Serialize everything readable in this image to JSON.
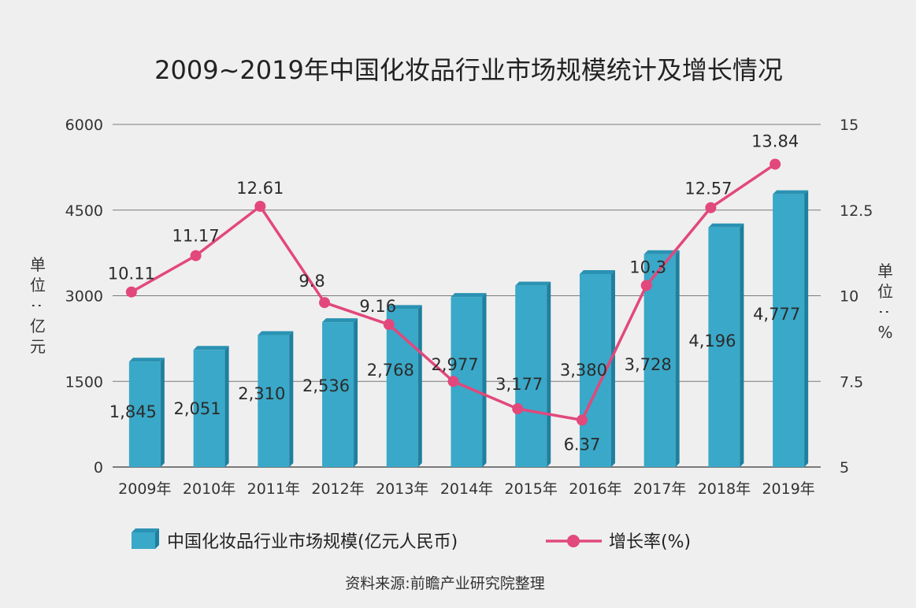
{
  "chart_data": {
    "type": "bar",
    "title": "2009~2019年中国化妆品行业市场规模统计及增长情况",
    "source": "资料来源:前瞻产业研究院整理",
    "y_left_label": "单位:亿元",
    "y_right_label": "单位:%",
    "categories": [
      "2009年",
      "2010年",
      "2011年",
      "2012年",
      "2013年",
      "2014年",
      "2015年",
      "2016年",
      "2017年",
      "2018年",
      "2019年"
    ],
    "y_left_ticks": [
      "0",
      "1500",
      "3000",
      "4500",
      "6000"
    ],
    "y_right_ticks": [
      "5",
      "7.5",
      "10",
      "12.5",
      "15"
    ],
    "y_left_range": [
      0,
      6000
    ],
    "y_right_range": [
      5,
      15
    ],
    "grid": true,
    "legend_position": "bottom",
    "series": [
      {
        "name": "中国化妆品行业市场规模(亿元人民币)",
        "type": "bar",
        "axis": "left",
        "color": "#3aa8c8",
        "values": [
          1845,
          2051,
          2310,
          2536,
          2768,
          2977,
          3177,
          3380,
          3728,
          4196,
          4777
        ],
        "labels": [
          "1,845",
          "2,051",
          "2,310",
          "2,536",
          "2,768",
          "2,977",
          "3,177",
          "3,380",
          "3,728",
          "4,196",
          "4,777"
        ]
      },
      {
        "name": "增长率(%)",
        "type": "line",
        "axis": "right",
        "color": "#e2487b",
        "values": [
          10.11,
          11.17,
          12.61,
          9.8,
          9.16,
          7.5,
          6.7,
          6.37,
          10.3,
          12.57,
          13.84
        ],
        "labels": [
          "10.11",
          "11.17",
          "12.61",
          "9.8",
          "9.16",
          "",
          "",
          "6.37",
          "10.3",
          "12.57",
          "13.84"
        ]
      }
    ]
  }
}
